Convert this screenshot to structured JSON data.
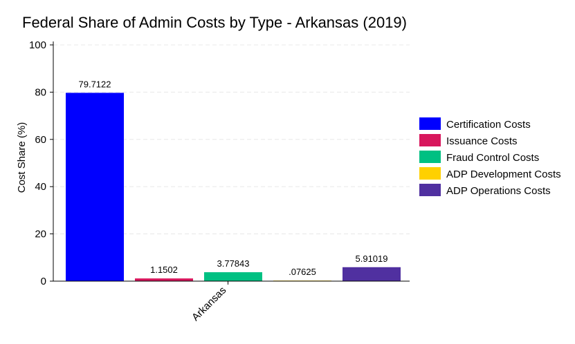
{
  "chart_data": {
    "type": "bar",
    "title": "Federal Share of Admin Costs by Type - Arkansas (2019)",
    "xlabel": "",
    "ylabel": "Cost Share (%)",
    "ylim": [
      0,
      100
    ],
    "yticks": [
      0,
      20,
      40,
      60,
      80,
      100
    ],
    "categories": [
      "Arkansas"
    ],
    "grid": true,
    "legend_position": "right",
    "series": [
      {
        "name": "Certification Costs",
        "values": [
          79.7122
        ],
        "label": "79.7122",
        "color": "#0000ff"
      },
      {
        "name": "Issuance Costs",
        "values": [
          1.1502
        ],
        "label": "1.1502",
        "color": "#d8175d"
      },
      {
        "name": "Fraud Control Costs",
        "values": [
          3.77843
        ],
        "label": "3.77843",
        "color": "#00c082"
      },
      {
        "name": "ADP Development Costs",
        "values": [
          0.07625
        ],
        "label": ".07625",
        "color": "#ffd000"
      },
      {
        "name": "ADP Operations Costs",
        "values": [
          5.91019
        ],
        "label": "5.91019",
        "color": "#5030a0"
      }
    ]
  }
}
